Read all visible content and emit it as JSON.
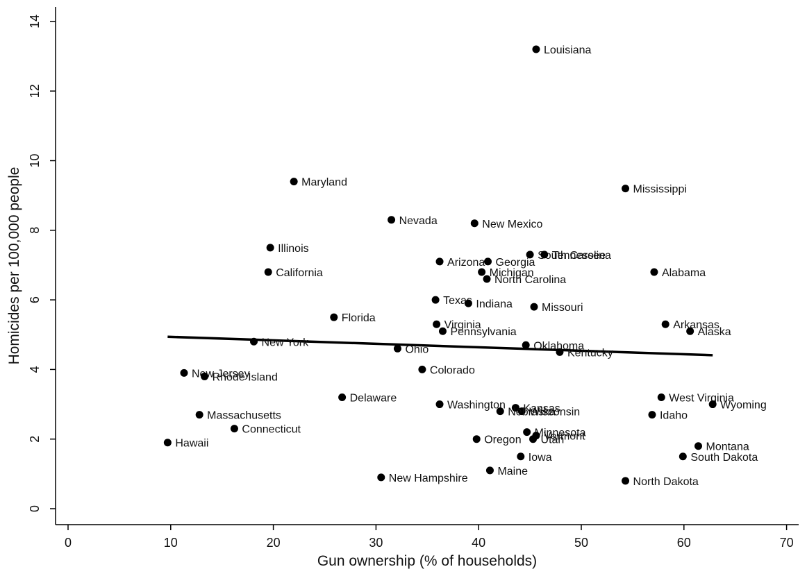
{
  "chart_data": {
    "type": "scatter",
    "xlabel": "Gun ownership (% of households)",
    "ylabel": "Homicides per 100,000 people",
    "xlim": [
      0,
      70
    ],
    "ylim": [
      0,
      14
    ],
    "xticks": [
      "0",
      "10",
      "20",
      "30",
      "40",
      "50",
      "60",
      "70"
    ],
    "yticks": [
      "0",
      "2",
      "4",
      "6",
      "8",
      "10",
      "12",
      "14"
    ],
    "grid": false,
    "legend": "none",
    "marker_color": "#000000",
    "fit_line": {
      "x": [
        9.7,
        62.8
      ],
      "y": [
        4.94,
        4.41
      ]
    },
    "points": [
      {
        "label": "Louisiana",
        "x": 45.6,
        "y": 13.2
      },
      {
        "label": "Maryland",
        "x": 22.0,
        "y": 9.4
      },
      {
        "label": "Mississippi",
        "x": 54.3,
        "y": 9.2
      },
      {
        "label": "Nevada",
        "x": 31.5,
        "y": 8.3
      },
      {
        "label": "New Mexico",
        "x": 39.6,
        "y": 8.2
      },
      {
        "label": "Illinois",
        "x": 19.7,
        "y": 7.5
      },
      {
        "label": "South Carolina",
        "x": 45.0,
        "y": 7.3
      },
      {
        "label": "Tennessee",
        "x": 46.4,
        "y": 7.3
      },
      {
        "label": "Arizona",
        "x": 36.2,
        "y": 7.1
      },
      {
        "label": "Georgia",
        "x": 40.9,
        "y": 7.1
      },
      {
        "label": "California",
        "x": 19.5,
        "y": 6.8
      },
      {
        "label": "Alabama",
        "x": 57.1,
        "y": 6.8
      },
      {
        "label": "Michigan",
        "x": 40.3,
        "y": 6.8
      },
      {
        "label": "North Carolina",
        "x": 40.8,
        "y": 6.6
      },
      {
        "label": "Texas",
        "x": 35.8,
        "y": 6.0
      },
      {
        "label": "Indiana",
        "x": 39.0,
        "y": 5.9
      },
      {
        "label": "Missouri",
        "x": 45.4,
        "y": 5.8
      },
      {
        "label": "Florida",
        "x": 25.9,
        "y": 5.5
      },
      {
        "label": "Virginia",
        "x": 35.9,
        "y": 5.3
      },
      {
        "label": "Arkansas",
        "x": 58.2,
        "y": 5.3
      },
      {
        "label": "Alaska",
        "x": 60.6,
        "y": 5.1
      },
      {
        "label": "Pennsylvania",
        "x": 36.5,
        "y": 5.1
      },
      {
        "label": "New York",
        "x": 18.1,
        "y": 4.8
      },
      {
        "label": "Oklahoma",
        "x": 44.6,
        "y": 4.7
      },
      {
        "label": "Ohio",
        "x": 32.1,
        "y": 4.6
      },
      {
        "label": "Kentucky",
        "x": 47.9,
        "y": 4.5
      },
      {
        "label": "Colorado",
        "x": 34.5,
        "y": 4.0
      },
      {
        "label": "New Jersey",
        "x": 11.3,
        "y": 3.9
      },
      {
        "label": "Rhode Island",
        "x": 13.3,
        "y": 3.8
      },
      {
        "label": "Delaware",
        "x": 26.7,
        "y": 3.2
      },
      {
        "label": "West Virginia",
        "x": 57.8,
        "y": 3.2
      },
      {
        "label": "Washington",
        "x": 36.2,
        "y": 3.0
      },
      {
        "label": "Wyoming",
        "x": 62.8,
        "y": 3.0
      },
      {
        "label": "Kansas",
        "x": 43.6,
        "y": 2.9
      },
      {
        "label": "Wisconsin",
        "x": 44.2,
        "y": 2.8
      },
      {
        "label": "Nebraska",
        "x": 42.1,
        "y": 2.8
      },
      {
        "label": "Massachusetts",
        "x": 12.8,
        "y": 2.7
      },
      {
        "label": "Idaho",
        "x": 56.9,
        "y": 2.7
      },
      {
        "label": "Connecticut",
        "x": 16.2,
        "y": 2.3
      },
      {
        "label": "Minnesota",
        "x": 44.7,
        "y": 2.2
      },
      {
        "label": "Vermont",
        "x": 45.6,
        "y": 2.1
      },
      {
        "label": "Utah",
        "x": 45.3,
        "y": 2.0
      },
      {
        "label": "Oregon",
        "x": 39.8,
        "y": 2.0
      },
      {
        "label": "Hawaii",
        "x": 9.7,
        "y": 1.9
      },
      {
        "label": "Montana",
        "x": 61.4,
        "y": 1.8
      },
      {
        "label": "Iowa",
        "x": 44.1,
        "y": 1.5
      },
      {
        "label": "South Dakota",
        "x": 59.9,
        "y": 1.5
      },
      {
        "label": "Maine",
        "x": 41.1,
        "y": 1.1
      },
      {
        "label": "New Hampshire",
        "x": 30.5,
        "y": 0.9
      },
      {
        "label": "North Dakota",
        "x": 54.3,
        "y": 0.8
      }
    ]
  }
}
